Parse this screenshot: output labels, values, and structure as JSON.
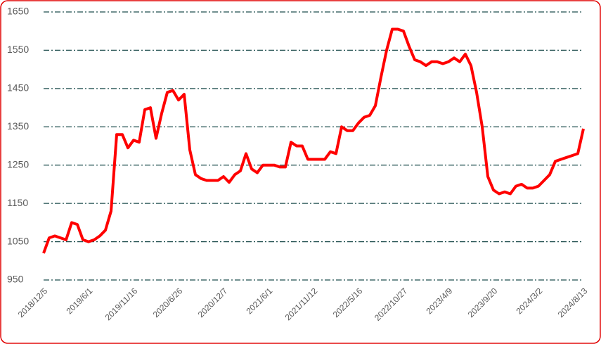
{
  "chart_data": {
    "type": "line",
    "categories": [
      "2018/12/5",
      null,
      null,
      null,
      null,
      null,
      null,
      null,
      "2019/6/1",
      null,
      null,
      null,
      null,
      null,
      null,
      null,
      "2019/11/16",
      null,
      null,
      null,
      null,
      null,
      null,
      null,
      "2020/6/26",
      null,
      null,
      null,
      null,
      null,
      null,
      null,
      "2020/12/7",
      null,
      null,
      null,
      null,
      null,
      null,
      null,
      "2021/6/1",
      null,
      null,
      null,
      null,
      null,
      null,
      null,
      "2021/11/12",
      null,
      null,
      null,
      null,
      null,
      null,
      null,
      "2022/5/16",
      null,
      null,
      null,
      null,
      null,
      null,
      null,
      "2022/10/27",
      null,
      null,
      null,
      null,
      null,
      null,
      null,
      "2023/4/9",
      null,
      null,
      null,
      null,
      null,
      null,
      null,
      "2023/9/20",
      null,
      null,
      null,
      null,
      null,
      null,
      null,
      "2024/3/2",
      null,
      null,
      null,
      null,
      null,
      null,
      null,
      "2024/8/13"
    ],
    "values": [
      1020,
      1060,
      1065,
      1060,
      1055,
      1100,
      1095,
      1055,
      1050,
      1055,
      1065,
      1080,
      1130,
      1330,
      1330,
      1295,
      1315,
      1310,
      1395,
      1400,
      1320,
      1385,
      1440,
      1445,
      1420,
      1435,
      1290,
      1225,
      1215,
      1210,
      1210,
      1210,
      1220,
      1205,
      1225,
      1235,
      1280,
      1240,
      1230,
      1250,
      1250,
      1250,
      1245,
      1245,
      1310,
      1300,
      1300,
      1265,
      1265,
      1265,
      1265,
      1285,
      1280,
      1350,
      1340,
      1340,
      1360,
      1375,
      1380,
      1405,
      1480,
      1550,
      1605,
      1605,
      1600,
      1560,
      1525,
      1520,
      1510,
      1520,
      1520,
      1515,
      1520,
      1530,
      1520,
      1540,
      1510,
      1440,
      1350,
      1220,
      1185,
      1175,
      1180,
      1175,
      1195,
      1200,
      1190,
      1190,
      1195,
      1210,
      1225,
      1260,
      1265,
      1270,
      1275,
      1280,
      1345
    ],
    "color": "#ff0000",
    "ylim": [
      950,
      1650
    ],
    "yticks": [
      950,
      1050,
      1150,
      1250,
      1350,
      1450,
      1550,
      1650
    ],
    "grid": true,
    "grid_color": "#1f4e4e"
  }
}
